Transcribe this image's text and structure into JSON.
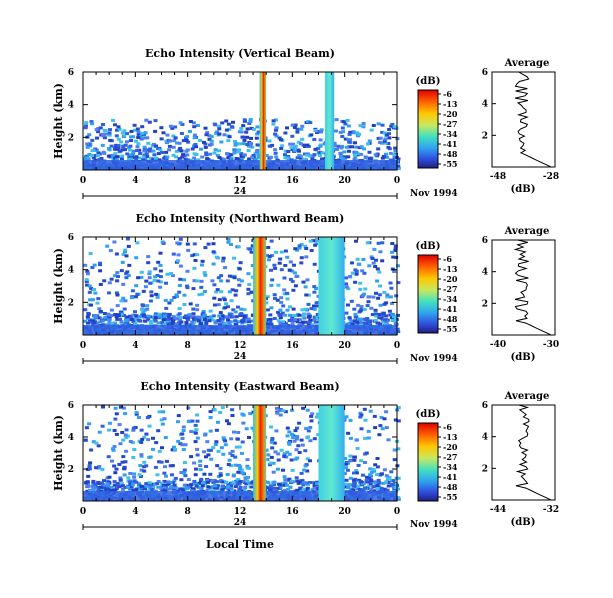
{
  "chart_data": [
    {
      "type": "heatmap",
      "title": "Echo Intensity (Vertical Beam)",
      "ylabel": "Height (km)",
      "yticks": [
        "2",
        "4",
        "6"
      ],
      "ylim": [
        0,
        6
      ],
      "xlim": [
        0,
        24
      ],
      "xticks": [
        "0",
        "4",
        "8",
        "12",
        "16",
        "20",
        "0"
      ],
      "date_label": "Nov 1994",
      "date_axis_label": "24",
      "colorbar": {
        "unit": "(dB)",
        "ticks": [
          "-6",
          "-13",
          "-20",
          "-27",
          "-34",
          "-41",
          "-48",
          "-55"
        ]
      },
      "intense_bands_local_time_hours": [
        [
          13.5,
          14.0
        ],
        [
          18.5,
          19.2
        ]
      ],
      "average_profile": {
        "title": "Average",
        "xlabel": "(dB)",
        "xticks": [
          "-48",
          "-28"
        ],
        "yticks": [
          "2",
          "4",
          "6"
        ]
      }
    },
    {
      "type": "heatmap",
      "title": "Echo Intensity (Northward Beam)",
      "ylabel": "Height (km)",
      "yticks": [
        "2",
        "4",
        "6"
      ],
      "ylim": [
        0,
        6
      ],
      "xlim": [
        0,
        24
      ],
      "xticks": [
        "0",
        "4",
        "8",
        "12",
        "16",
        "20",
        "0"
      ],
      "date_label": "Nov 1994",
      "date_axis_label": "24",
      "colorbar": {
        "unit": "(dB)",
        "ticks": [
          "-6",
          "-13",
          "-20",
          "-27",
          "-34",
          "-41",
          "-48",
          "-55"
        ]
      },
      "intense_bands_local_time_hours": [
        [
          13.0,
          14.0
        ],
        [
          18.0,
          20.0
        ]
      ],
      "average_profile": {
        "title": "Average",
        "xlabel": "(dB)",
        "xticks": [
          "-40",
          "-30"
        ],
        "yticks": [
          "2",
          "4",
          "6"
        ]
      }
    },
    {
      "type": "heatmap",
      "title": "Echo Intensity (Eastward Beam)",
      "ylabel": "Height (km)",
      "yticks": [
        "2",
        "4",
        "6"
      ],
      "ylim": [
        0,
        6
      ],
      "xlim": [
        0,
        24
      ],
      "xticks": [
        "0",
        "4",
        "8",
        "12",
        "16",
        "20",
        "0"
      ],
      "date_label": "Nov 1994",
      "date_axis_label": "24",
      "xlabel": "Local Time",
      "colorbar": {
        "unit": "(dB)",
        "ticks": [
          "-6",
          "-13",
          "-20",
          "-27",
          "-34",
          "-41",
          "-48",
          "-55"
        ]
      },
      "intense_bands_local_time_hours": [
        [
          13.0,
          14.0
        ],
        [
          18.0,
          20.0
        ]
      ],
      "average_profile": {
        "title": "Average",
        "xlabel": "(dB)",
        "xticks": [
          "-44",
          "-32"
        ],
        "yticks": [
          "2",
          "4",
          "6"
        ]
      }
    }
  ],
  "colors": {
    "scale": [
      "#e00000",
      "#ff6000",
      "#ffc800",
      "#c8e860",
      "#40e0c0",
      "#30a0f0",
      "#3050e0",
      "#202080"
    ]
  }
}
